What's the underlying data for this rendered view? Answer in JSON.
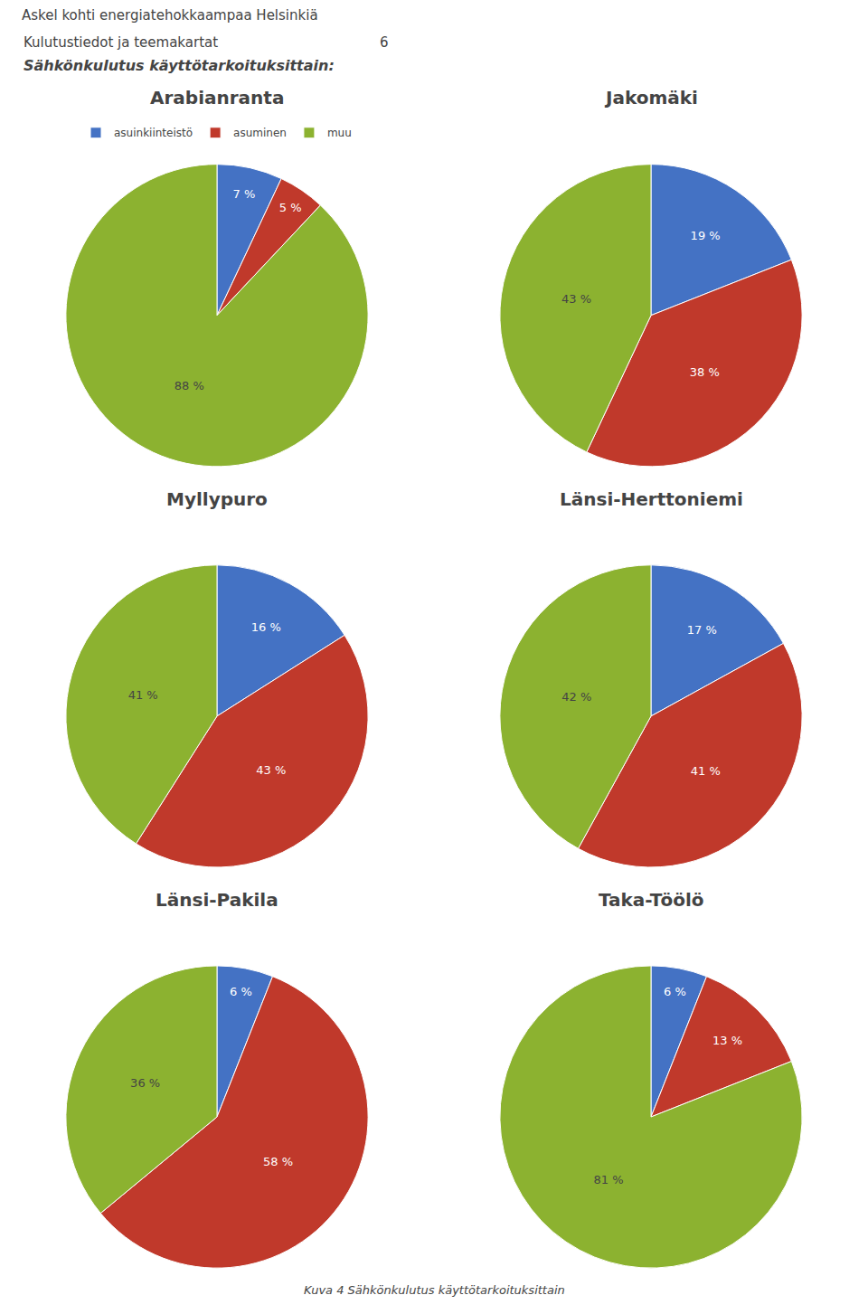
{
  "title": "Askel kohti energiatehokkaampaa Helsinkiä",
  "subtitle": "Sähkönkulutus käyttötarkoituksittain:",
  "annotations": [
    "Kulutustiedot ja teemakartat",
    "6",
    "Kuva 4 Sähkönkulutus käyttötarkoituksittain"
  ],
  "chart_data": [
    {
      "type": "pie",
      "title": "Arabianranta",
      "categories": [
        "asuinkiinteistö",
        "asuminen",
        "muu"
      ],
      "values": [
        7,
        5,
        88
      ],
      "value_labels": [
        "7 %",
        "5 %",
        "88 %"
      ],
      "colors": [
        "#4472c4",
        "#c0392b",
        "#8cb230"
      ],
      "data_labels": true,
      "legend": "top"
    },
    {
      "type": "pie",
      "title": "Jakomäki",
      "categories": [
        "asuinkiinteistö",
        "asuminen",
        "muu"
      ],
      "values": [
        19,
        38,
        43
      ],
      "value_labels": [
        "19 %",
        "38 %",
        "43 %"
      ],
      "colors": [
        "#4472c4",
        "#c0392b",
        "#8cb230"
      ],
      "data_labels": true,
      "legend": "top"
    },
    {
      "type": "pie",
      "title": "Myllypuro",
      "categories": [
        "asuinkiinteistö",
        "asuminen",
        "muu"
      ],
      "values": [
        16,
        43,
        41
      ],
      "value_labels": [
        "16 %",
        "43 %",
        "41 %"
      ],
      "colors": [
        "#4472c4",
        "#c0392b",
        "#8cb230"
      ],
      "data_labels": true,
      "legend": "top"
    },
    {
      "type": "pie",
      "title": "Länsi-Herttoniemi",
      "categories": [
        "asuinkiinteistö",
        "asuminen",
        "muu"
      ],
      "values": [
        17,
        41,
        42
      ],
      "value_labels": [
        "17 %",
        "41 %",
        "42 %"
      ],
      "colors": [
        "#4472c4",
        "#c0392b",
        "#8cb230"
      ],
      "data_labels": true,
      "legend": "top"
    },
    {
      "type": "pie",
      "title": "Länsi-Pakila",
      "categories": [
        "asuinkiinteistö",
        "asuminen",
        "muu"
      ],
      "values": [
        6,
        58,
        36
      ],
      "value_labels": [
        "6 %",
        "58 %",
        "36 %"
      ],
      "colors": [
        "#4472c4",
        "#c0392b",
        "#8cb230"
      ],
      "data_labels": true,
      "legend": "top"
    },
    {
      "type": "pie",
      "title": "Taka-Töölö",
      "categories": [
        "asuinkiinteistö",
        "asuminen",
        "muu"
      ],
      "values": [
        6,
        13,
        81
      ],
      "value_labels": [
        "6 %",
        "13 %",
        "81 %"
      ],
      "colors": [
        "#4472c4",
        "#c0392b",
        "#8cb230"
      ],
      "data_labels": true,
      "legend": "top"
    }
  ]
}
